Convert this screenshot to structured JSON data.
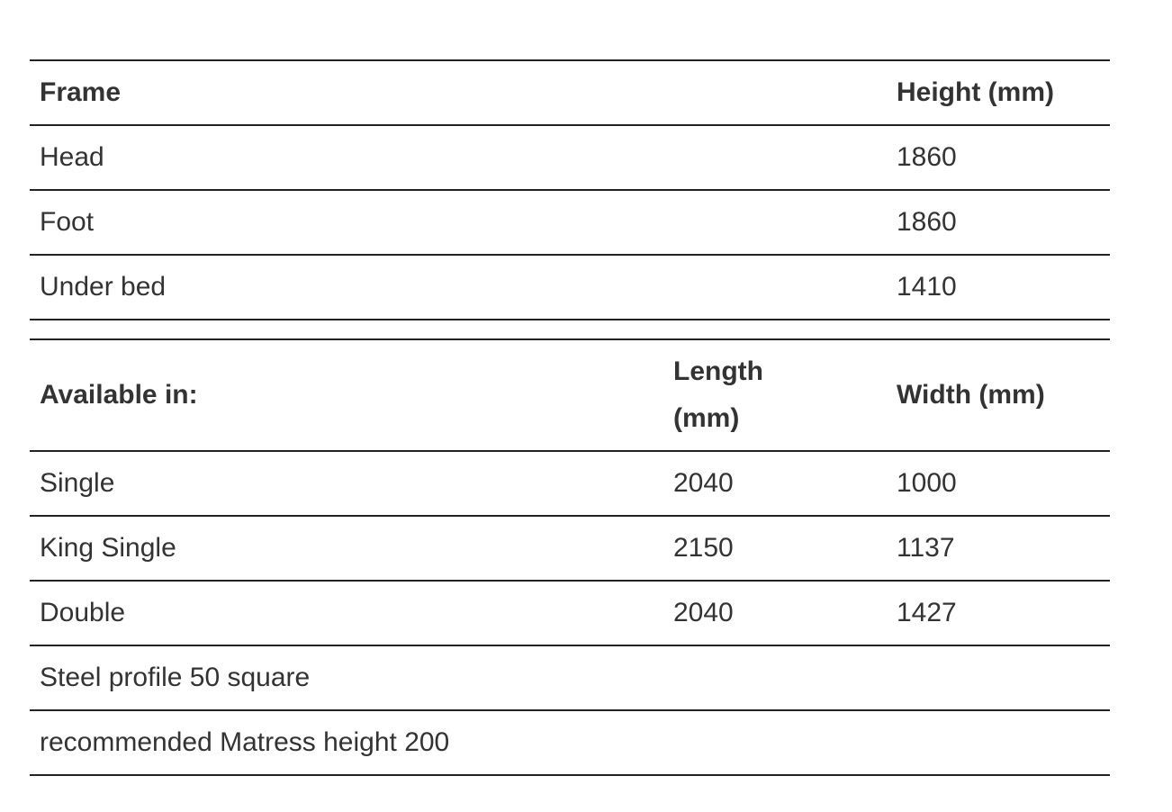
{
  "tables": [
    {
      "header": [
        "Frame",
        "Height (mm)"
      ],
      "rows": [
        [
          "Head",
          "1860"
        ],
        [
          "Foot",
          "1860"
        ],
        [
          "Under bed",
          "1410"
        ]
      ]
    },
    {
      "header": [
        "Available in:",
        "Length (mm)",
        "Width (mm)"
      ],
      "rows": [
        [
          "Single",
          "2040",
          "1000"
        ],
        [
          "King Single",
          "2150",
          "1137"
        ],
        [
          "Double",
          "2040",
          "1427"
        ],
        [
          "Steel profile 50 square"
        ],
        [
          "recommended Matress height 200"
        ]
      ]
    }
  ]
}
